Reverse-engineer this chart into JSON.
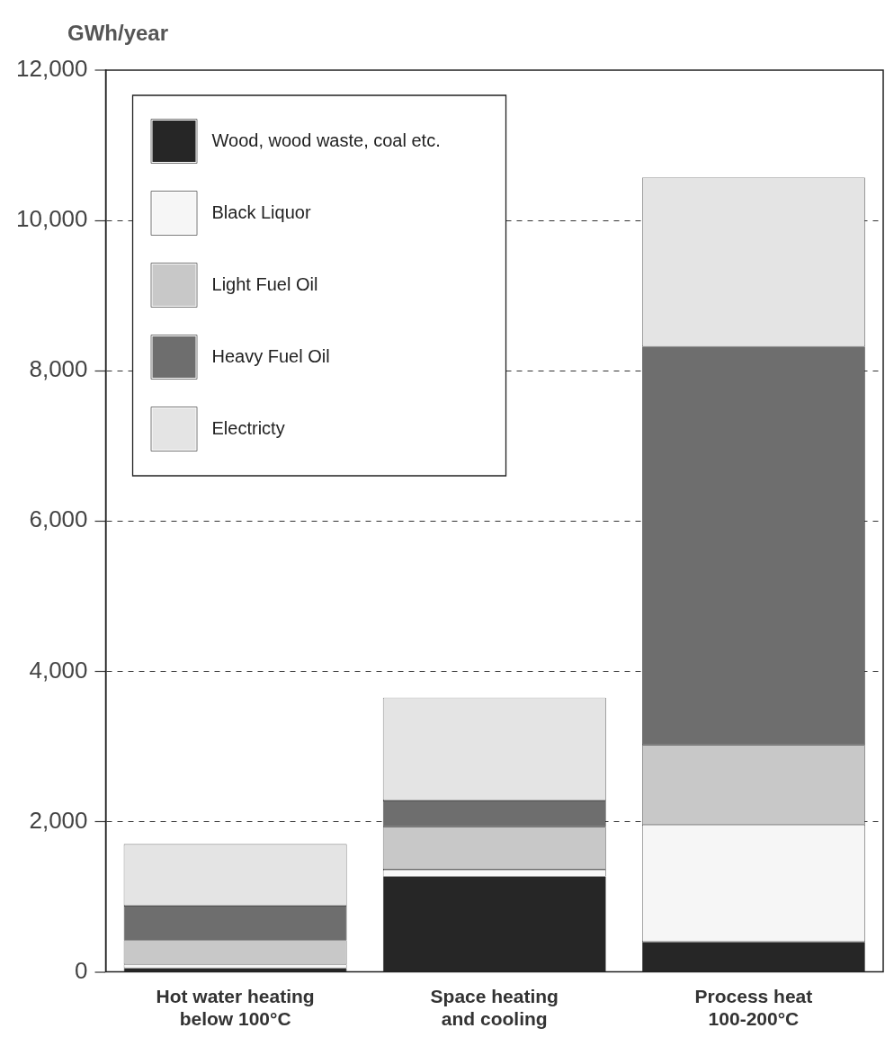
{
  "chart_data": {
    "type": "bar",
    "stacked": true,
    "ylabel": "GWh/year",
    "categories": [
      "Hot water heating below 100°C",
      "Space heating and cooling",
      "Process heat 100-200°C"
    ],
    "series": [
      {
        "name": "Wood, wood waste, coal etc.",
        "color": "#262626",
        "values": [
          50,
          1270,
          400
        ]
      },
      {
        "name": "Black Liquor",
        "color": "#f6f6f6",
        "values": [
          50,
          90,
          1560
        ]
      },
      {
        "name": "Light Fuel Oil",
        "color": "#c8c8c8",
        "values": [
          320,
          570,
          1060
        ]
      },
      {
        "name": "Heavy Fuel Oil",
        "color": "#6e6e6e",
        "values": [
          460,
          350,
          5300
        ]
      },
      {
        "name": "Electricty",
        "color": "#e4e4e4",
        "values": [
          820,
          1370,
          2250
        ]
      }
    ],
    "ylim": [
      0,
      12000
    ],
    "yticks": [
      {
        "value": 0,
        "label": "0"
      },
      {
        "value": 2000,
        "label": "2,000"
      },
      {
        "value": 4000,
        "label": "4,000"
      },
      {
        "value": 6000,
        "label": "6,000"
      },
      {
        "value": 8000,
        "label": "8,000"
      },
      {
        "value": 10000,
        "label": "10,000"
      },
      {
        "value": 12000,
        "label": "12,000"
      }
    ],
    "grid": "y",
    "legend": "top left"
  }
}
